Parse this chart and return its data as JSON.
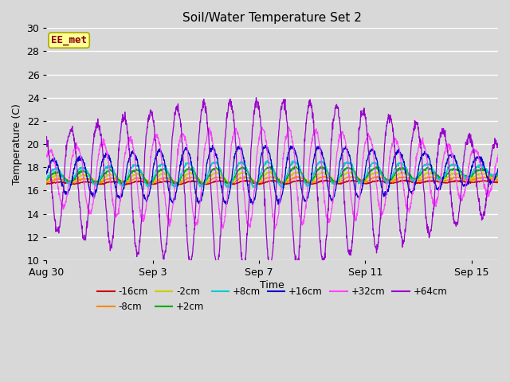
{
  "title": "Soil/Water Temperature Set 2",
  "xlabel": "Time",
  "ylabel": "Temperature (C)",
  "ylim": [
    10,
    30
  ],
  "yticks": [
    10,
    12,
    14,
    16,
    18,
    20,
    22,
    24,
    26,
    28,
    30
  ],
  "bg_color": "#d8d8d8",
  "total_hours": 408,
  "x_tick_labels": [
    "Aug 30",
    "Sep 3",
    "Sep 7",
    "Sep 11",
    "Sep 15"
  ],
  "x_tick_positions": [
    0,
    96,
    192,
    288,
    384
  ],
  "series": [
    {
      "label": "-16cm",
      "color": "#cc0000",
      "base": 16.65,
      "amp": 0.12,
      "phase": 6,
      "trend": 0.007,
      "noise": 0.03
    },
    {
      "label": "-8cm",
      "color": "#ff8800",
      "base": 16.85,
      "amp": 0.22,
      "phase": 5,
      "trend": 0.01,
      "noise": 0.04
    },
    {
      "label": "-2cm",
      "color": "#cccc00",
      "base": 17.05,
      "amp": 0.38,
      "phase": 4,
      "trend": 0.014,
      "noise": 0.05
    },
    {
      "label": "+2cm",
      "color": "#00aa00",
      "base": 17.2,
      "amp": 0.6,
      "phase": 3,
      "trend": 0.02,
      "noise": 0.06
    },
    {
      "label": "+8cm",
      "color": "#00cccc",
      "base": 17.3,
      "amp": 0.95,
      "phase": 2,
      "trend": 0.025,
      "noise": 0.07
    },
    {
      "label": "+16cm",
      "color": "#0000cc",
      "base": 17.35,
      "amp": 2.2,
      "phase": 0,
      "trend": 0.028,
      "noise": 0.1
    },
    {
      "label": "+32cm",
      "color": "#ff44ff",
      "base": 17.3,
      "amp": 3.8,
      "phase": -3,
      "trend": 0.022,
      "noise": 0.15
    },
    {
      "label": "+64cm",
      "color": "#9900cc",
      "base": 17.1,
      "amp": 6.5,
      "phase": -8,
      "trend": 0.015,
      "noise": 0.2
    }
  ],
  "annotation_text": "EE_met",
  "annotation_color": "#880000",
  "annotation_bg": "#ffff99",
  "annotation_border": "#aaaa00"
}
